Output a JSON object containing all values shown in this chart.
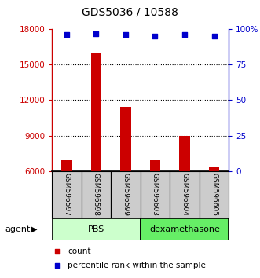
{
  "title": "GDS5036 / 10588",
  "samples": [
    "GSM596597",
    "GSM596598",
    "GSM596599",
    "GSM596603",
    "GSM596604",
    "GSM596605"
  ],
  "counts": [
    6900,
    16000,
    11400,
    6900,
    9000,
    6300
  ],
  "percentiles": [
    96,
    97,
    96,
    95,
    96,
    95
  ],
  "groups": [
    {
      "label": "PBS",
      "color": "#ccffcc",
      "n": 3
    },
    {
      "label": "dexamethasone",
      "color": "#66ee66",
      "n": 3
    }
  ],
  "bar_color": "#cc0000",
  "dot_color": "#0000cc",
  "ylim_left": [
    6000,
    18000
  ],
  "ylim_right": [
    0,
    100
  ],
  "yticks_left": [
    6000,
    9000,
    12000,
    15000,
    18000
  ],
  "yticks_right": [
    0,
    25,
    50,
    75,
    100
  ],
  "ytick_labels_right": [
    "0",
    "25",
    "50",
    "75",
    "100%"
  ],
  "bar_width": 0.35,
  "agent_label": "agent",
  "legend_count_label": "count",
  "legend_pct_label": "percentile rank within the sample",
  "gray_box_color": "#cccccc",
  "title_fontsize": 10,
  "axis_fontsize": 7.5,
  "sample_fontsize": 6.5,
  "group_fontsize": 8
}
